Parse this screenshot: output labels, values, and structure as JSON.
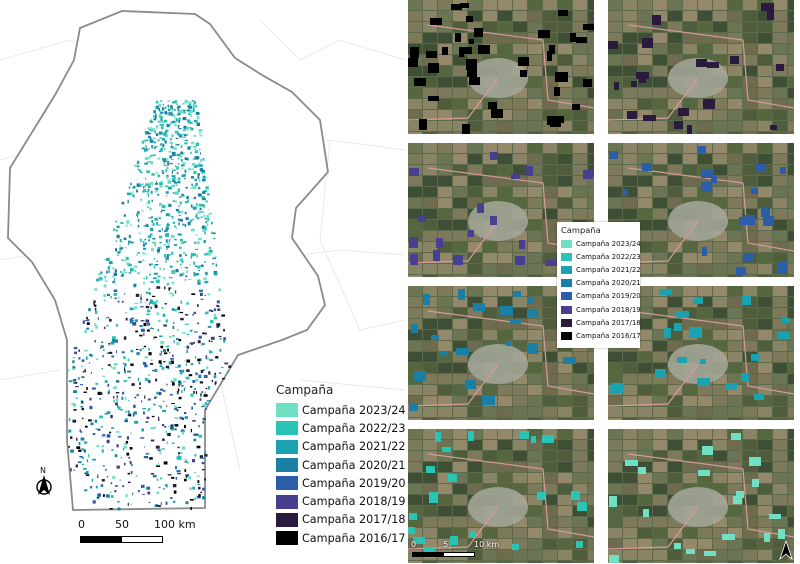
{
  "legend": {
    "title": "Campaña",
    "items": [
      {
        "label": "Campaña 2023/24",
        "color": "#6fe0c3"
      },
      {
        "label": "Campaña 2022/23",
        "color": "#2ac4b4"
      },
      {
        "label": "Campaña 2021/22",
        "color": "#1aa2b0"
      },
      {
        "label": "Campaña 2020/21",
        "color": "#1a7fa5"
      },
      {
        "label": "Campaña 2019/20",
        "color": "#2b5ea8"
      },
      {
        "label": "Campaña 2018/19",
        "color": "#473f8f"
      },
      {
        "label": "Campaña 2017/18",
        "color": "#2a1a3e"
      },
      {
        "label": "Campaña 2016/17",
        "color": "#000000"
      }
    ]
  },
  "scale_bar": {
    "ticks": [
      "0",
      "50",
      "100 km"
    ]
  },
  "north_arrow": {
    "label": "N",
    "icon": "north-arrow-icon"
  },
  "inset_legend": {
    "title": "Campaña",
    "items": [
      {
        "label": "Campaña 2023/24",
        "color": "#6fe0c3"
      },
      {
        "label": "Campaña 2022/23",
        "color": "#2ac4b4"
      },
      {
        "label": "Campaña 2021/22",
        "color": "#1aa2b0"
      },
      {
        "label": "Campaña 2020/21",
        "color": "#1a7fa5"
      },
      {
        "label": "Campaña 2019/20",
        "color": "#2b5ea8"
      },
      {
        "label": "Campaña 2018/19",
        "color": "#473f8f"
      },
      {
        "label": "Campaña 2017/18",
        "color": "#2a1a3e"
      },
      {
        "label": "Campaña 2016/17",
        "color": "#000000"
      }
    ]
  },
  "inset_scale": {
    "ticks": [
      "0",
      "5",
      "10 km"
    ]
  },
  "panels": [
    {
      "campaign_color": "#000000"
    },
    {
      "campaign_color": "#2a1a3e"
    },
    {
      "campaign_color": "#473f8f"
    },
    {
      "campaign_color": "#2b5ea8"
    },
    {
      "campaign_color": "#1a7fa5"
    },
    {
      "campaign_color": "#1aa2b0"
    },
    {
      "campaign_color": "#2ac4b4"
    },
    {
      "campaign_color": "#6fe0c3"
    }
  ]
}
